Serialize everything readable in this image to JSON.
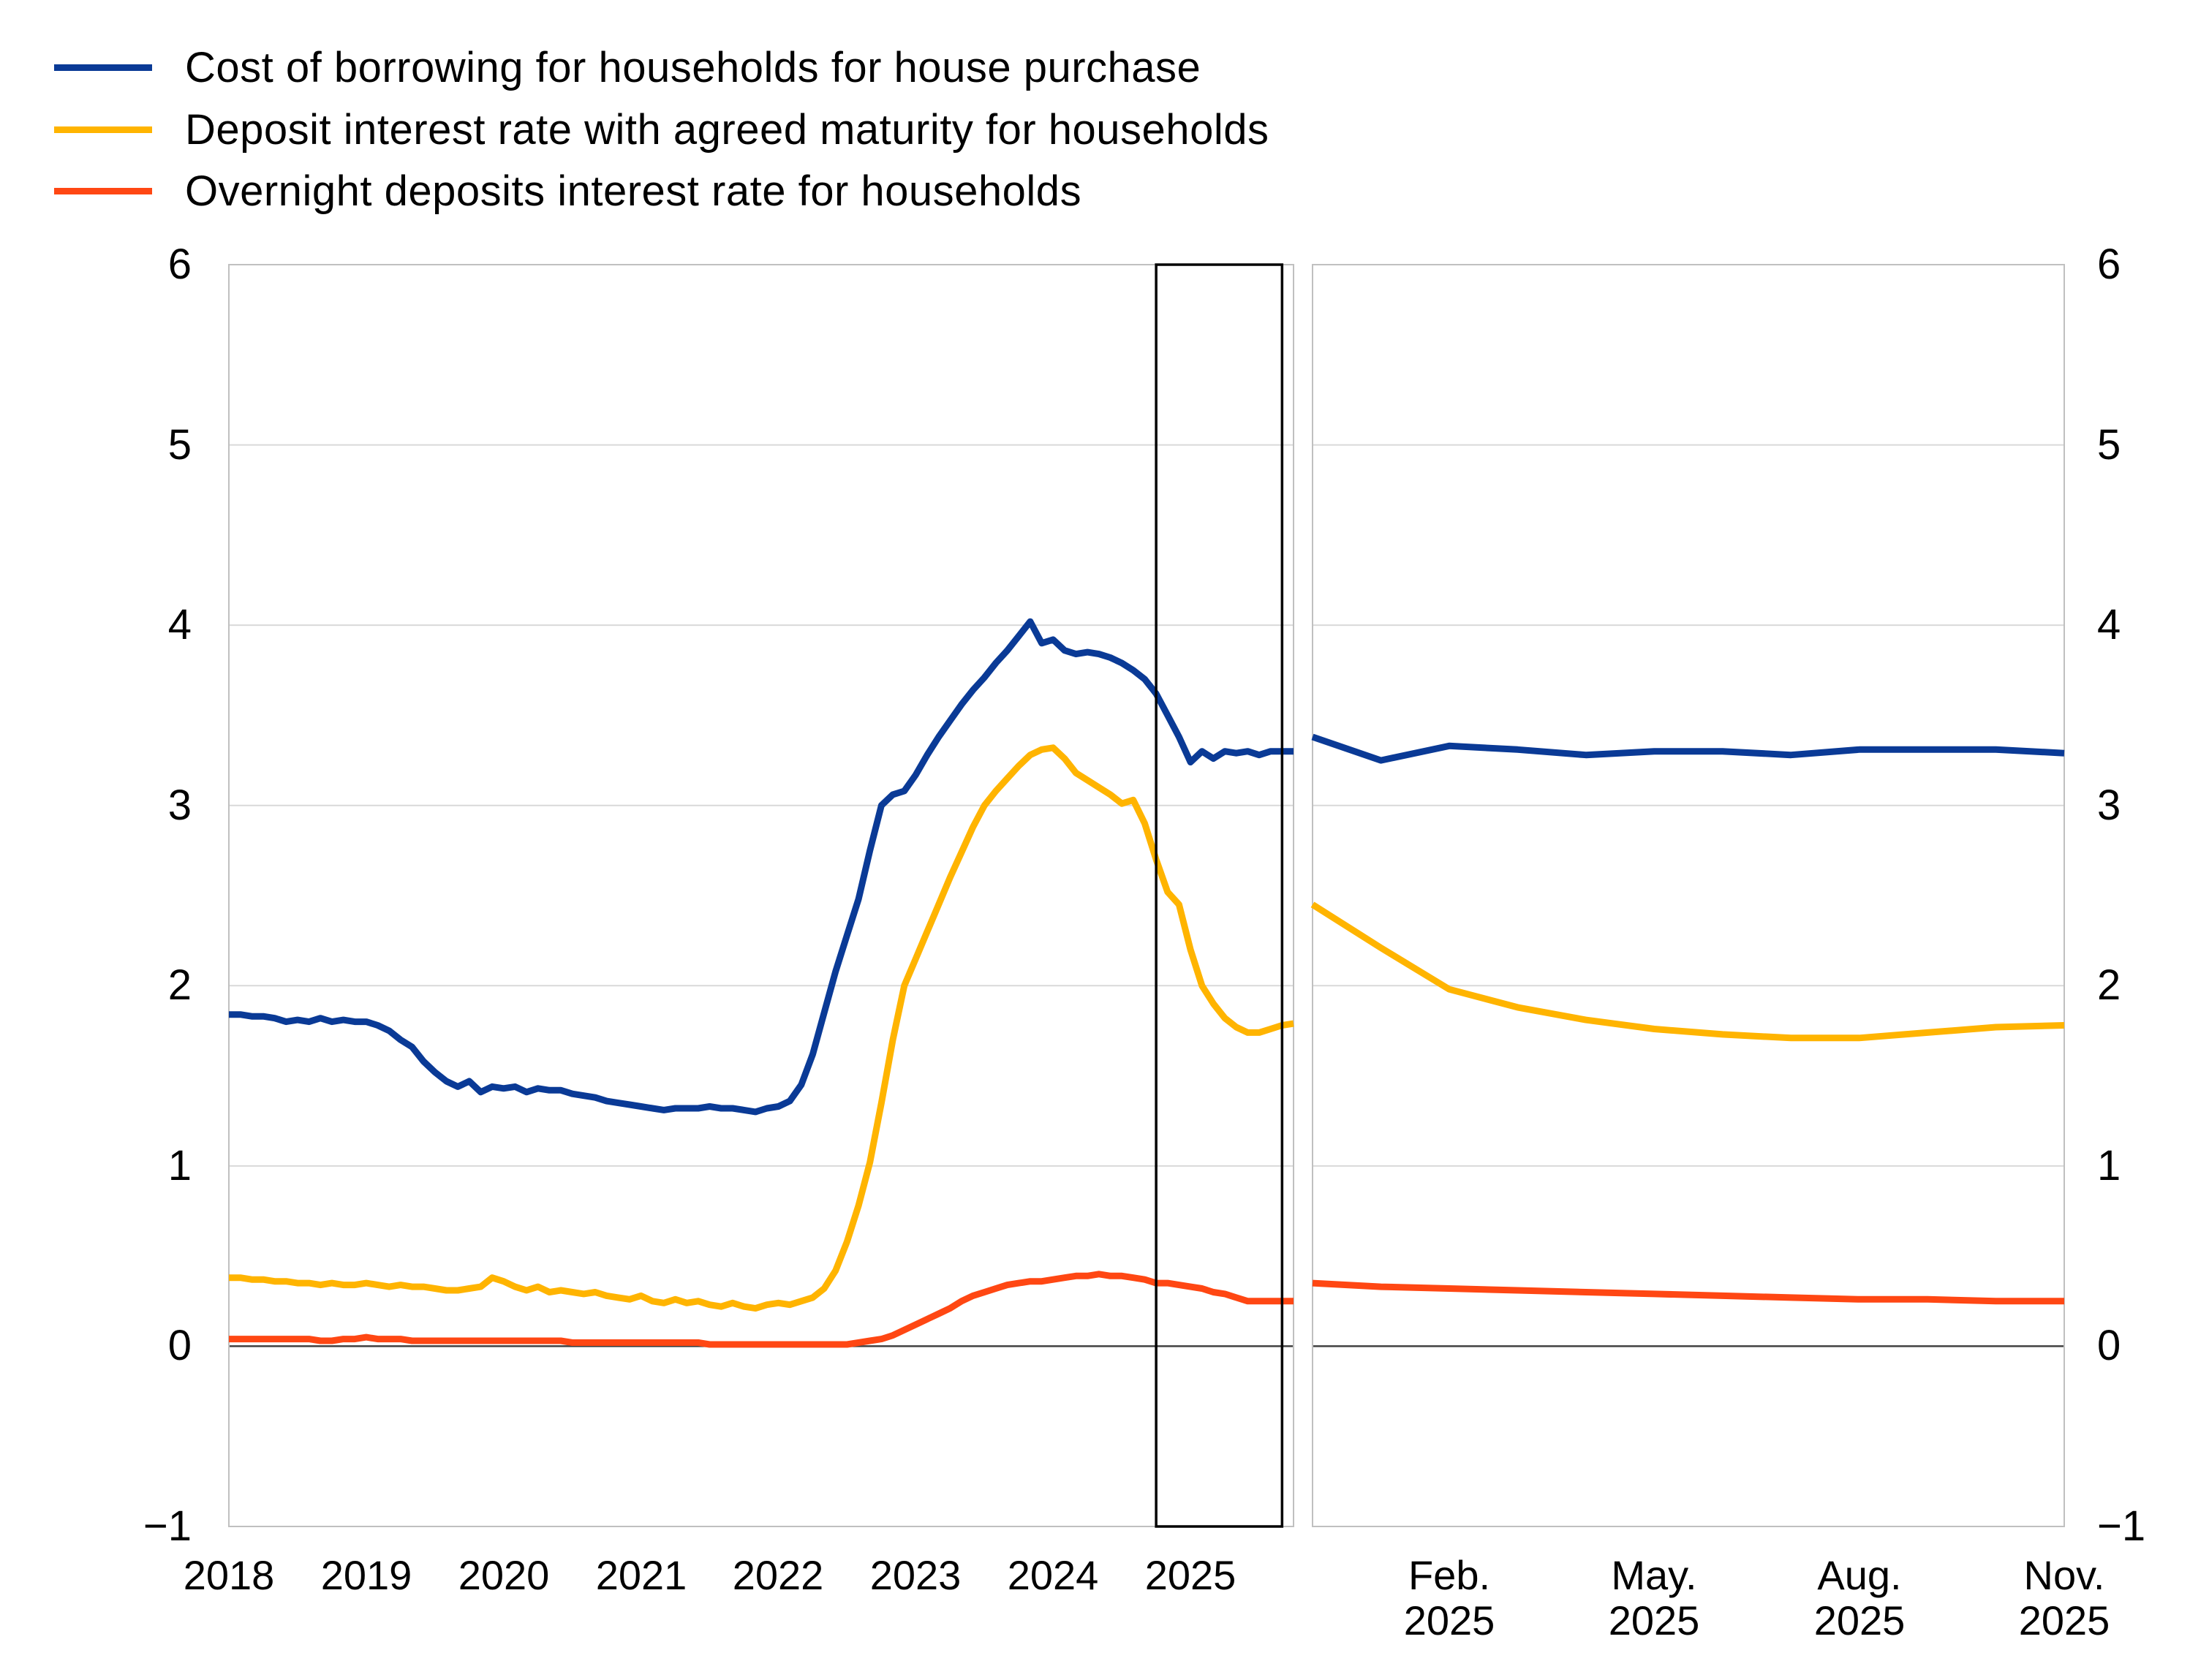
{
  "legend": {
    "items": [
      {
        "label": "Cost of borrowing for households for house purchase",
        "color": "#0a3a96"
      },
      {
        "label": "Deposit interest rate with agreed maturity for households",
        "color": "#ffb400"
      },
      {
        "label": "Overnight deposits interest rate for households",
        "color": "#ff4713"
      }
    ]
  },
  "colors": {
    "gridline": "#d9d9d9",
    "zero_line": "#404040",
    "panel_border": "#c0c0c0",
    "highlight_box": "#000000",
    "background": "#ffffff"
  },
  "chart_data": {
    "type": "line",
    "title": "",
    "ylabel": "",
    "xlabel": "",
    "y_axis": {
      "ticks": [
        6,
        5,
        4,
        3,
        2,
        1,
        0,
        -1
      ],
      "tick_labels": [
        "6",
        "5",
        "4",
        "3",
        "2",
        "1",
        "0",
        "−1"
      ],
      "min": -1,
      "max": 6,
      "shown_on": "both sides",
      "grid": true
    },
    "panels": [
      {
        "name": "history-panel",
        "x_start": "2018-01",
        "x_end": "2025-10",
        "frequency": "monthly",
        "x_tick_labels": [
          "2018",
          "2019",
          "2020",
          "2021",
          "2022",
          "2023",
          "2024",
          "2025"
        ],
        "x_tick_month_indices": [
          0,
          12,
          24,
          36,
          48,
          60,
          72,
          84
        ],
        "highlight_box": {
          "from": "2024-10",
          "to": "2025-09",
          "start_index": 81,
          "end_index": 92
        },
        "series": [
          {
            "name": "Cost of borrowing for households for house purchase",
            "color": "#0a3a96",
            "values": [
              1.84,
              1.84,
              1.83,
              1.83,
              1.82,
              1.8,
              1.81,
              1.8,
              1.82,
              1.8,
              1.81,
              1.8,
              1.8,
              1.78,
              1.75,
              1.7,
              1.66,
              1.58,
              1.52,
              1.47,
              1.44,
              1.47,
              1.41,
              1.44,
              1.43,
              1.44,
              1.41,
              1.43,
              1.42,
              1.42,
              1.4,
              1.39,
              1.38,
              1.36,
              1.35,
              1.34,
              1.33,
              1.32,
              1.31,
              1.32,
              1.32,
              1.32,
              1.33,
              1.32,
              1.32,
              1.31,
              1.3,
              1.32,
              1.33,
              1.36,
              1.45,
              1.62,
              1.85,
              2.08,
              2.28,
              2.48,
              2.75,
              3.0,
              3.06,
              3.08,
              3.17,
              3.28,
              3.38,
              3.47,
              3.56,
              3.64,
              3.71,
              3.79,
              3.86,
              3.94,
              4.02,
              3.9,
              3.92,
              3.86,
              3.84,
              3.85,
              3.84,
              3.82,
              3.79,
              3.75,
              3.7,
              3.62,
              3.5,
              3.38,
              3.24,
              3.3,
              3.26,
              3.3,
              3.29,
              3.3,
              3.28,
              3.3,
              3.3,
              3.3
            ]
          },
          {
            "name": "Deposit interest rate with agreed maturity for households",
            "color": "#ffb400",
            "values": [
              0.38,
              0.38,
              0.37,
              0.37,
              0.36,
              0.36,
              0.35,
              0.35,
              0.34,
              0.35,
              0.34,
              0.34,
              0.35,
              0.34,
              0.33,
              0.34,
              0.33,
              0.33,
              0.32,
              0.31,
              0.31,
              0.32,
              0.33,
              0.38,
              0.36,
              0.33,
              0.31,
              0.33,
              0.3,
              0.31,
              0.3,
              0.29,
              0.3,
              0.28,
              0.27,
              0.26,
              0.28,
              0.25,
              0.24,
              0.26,
              0.24,
              0.25,
              0.23,
              0.22,
              0.24,
              0.22,
              0.21,
              0.23,
              0.24,
              0.23,
              0.25,
              0.27,
              0.32,
              0.42,
              0.58,
              0.78,
              1.02,
              1.35,
              1.7,
              2.0,
              2.15,
              2.3,
              2.45,
              2.6,
              2.74,
              2.88,
              3.0,
              3.08,
              3.15,
              3.22,
              3.28,
              3.31,
              3.32,
              3.26,
              3.18,
              3.14,
              3.1,
              3.06,
              3.01,
              3.03,
              2.9,
              2.7,
              2.52,
              2.45,
              2.2,
              2.0,
              1.9,
              1.82,
              1.77,
              1.74,
              1.74,
              1.76,
              1.78,
              1.79
            ]
          },
          {
            "name": "Overnight deposits interest rate for households",
            "color": "#ff4713",
            "values": [
              0.04,
              0.04,
              0.04,
              0.04,
              0.04,
              0.04,
              0.04,
              0.04,
              0.03,
              0.03,
              0.04,
              0.04,
              0.05,
              0.04,
              0.04,
              0.04,
              0.03,
              0.03,
              0.03,
              0.03,
              0.03,
              0.03,
              0.03,
              0.03,
              0.03,
              0.03,
              0.03,
              0.03,
              0.03,
              0.03,
              0.02,
              0.02,
              0.02,
              0.02,
              0.02,
              0.02,
              0.02,
              0.02,
              0.02,
              0.02,
              0.02,
              0.02,
              0.01,
              0.01,
              0.01,
              0.01,
              0.01,
              0.01,
              0.01,
              0.01,
              0.01,
              0.01,
              0.01,
              0.01,
              0.01,
              0.02,
              0.03,
              0.04,
              0.06,
              0.09,
              0.12,
              0.15,
              0.18,
              0.21,
              0.25,
              0.28,
              0.3,
              0.32,
              0.34,
              0.35,
              0.36,
              0.36,
              0.37,
              0.38,
              0.39,
              0.39,
              0.4,
              0.39,
              0.39,
              0.38,
              0.37,
              0.35,
              0.35,
              0.34,
              0.33,
              0.32,
              0.3,
              0.29,
              0.27,
              0.25,
              0.25,
              0.25,
              0.25,
              0.25
            ]
          }
        ]
      },
      {
        "name": "recent-panel",
        "x_start": "2024-12",
        "x_end": "2025-11",
        "frequency": "monthly",
        "x_tick_labels": [
          [
            "Feb.",
            "2025"
          ],
          [
            "May.",
            "2025"
          ],
          [
            "Aug.",
            "2025"
          ],
          [
            "Nov.",
            "2025"
          ]
        ],
        "x_tick_month_indices": [
          2,
          5,
          8,
          11
        ],
        "series": [
          {
            "name": "Cost of borrowing for households for house purchase",
            "color": "#0a3a96",
            "values": [
              3.38,
              3.25,
              3.33,
              3.31,
              3.28,
              3.3,
              3.3,
              3.28,
              3.31,
              3.31,
              3.31,
              3.29
            ]
          },
          {
            "name": "Deposit interest rate with agreed maturity for households",
            "color": "#ffb400",
            "values": [
              2.45,
              2.21,
              1.98,
              1.88,
              1.81,
              1.76,
              1.73,
              1.71,
              1.71,
              1.74,
              1.77,
              1.78
            ]
          },
          {
            "name": "Overnight deposits interest rate for households",
            "color": "#ff4713",
            "values": [
              0.35,
              0.33,
              0.32,
              0.31,
              0.3,
              0.29,
              0.28,
              0.27,
              0.26,
              0.26,
              0.25,
              0.25
            ]
          }
        ]
      }
    ]
  }
}
